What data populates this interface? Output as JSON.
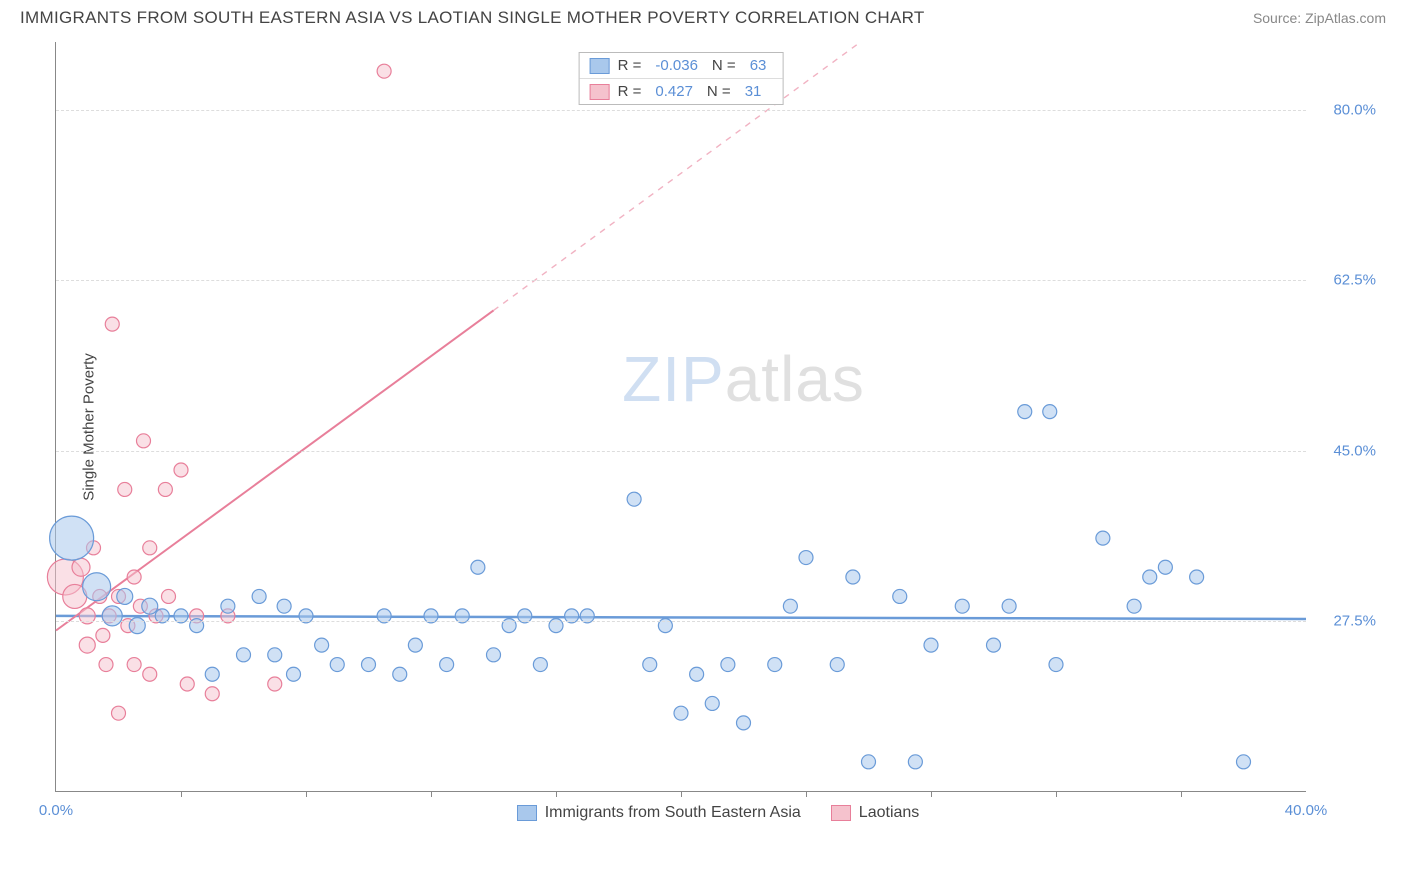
{
  "header": {
    "title": "IMMIGRANTS FROM SOUTH EASTERN ASIA VS LAOTIAN SINGLE MOTHER POVERTY CORRELATION CHART",
    "source": "Source: ZipAtlas.com"
  },
  "watermark": {
    "zip": "ZIP",
    "atlas": "atlas"
  },
  "chart": {
    "type": "scatter",
    "xlim": [
      0,
      40
    ],
    "ylim": [
      10,
      87
    ],
    "background_color": "#ffffff",
    "grid_color": "#dddddd",
    "axis_color": "#888888",
    "y_label": "Single Mother Poverty",
    "y_ticks": [
      27.5,
      45.0,
      62.5,
      80.0
    ],
    "y_tick_labels": [
      "27.5%",
      "45.0%",
      "62.5%",
      "80.0%"
    ],
    "x_ticks_major": [
      0,
      40
    ],
    "x_tick_labels": [
      "0.0%",
      "40.0%"
    ],
    "x_ticks_minor": [
      4,
      8,
      12,
      16,
      20,
      24,
      28,
      32,
      36
    ],
    "y_tick_label_color": "#5b8fd6",
    "x_tick_label_color": "#5b8fd6",
    "series": [
      {
        "name": "Immigrants from South Eastern Asia",
        "color_fill": "#a9c8ec",
        "color_stroke": "#6a9bd8",
        "fill_opacity": 0.55,
        "marker_stroke_width": 1.2,
        "regression": {
          "slope": -0.008,
          "intercept": 28.0,
          "dash_from_x": 40,
          "line_width": 2.5
        },
        "r": "-0.036",
        "n": "63",
        "points": [
          {
            "x": 0.5,
            "y": 36,
            "r": 22
          },
          {
            "x": 1.3,
            "y": 31,
            "r": 14
          },
          {
            "x": 1.8,
            "y": 28,
            "r": 10
          },
          {
            "x": 2.2,
            "y": 30,
            "r": 8
          },
          {
            "x": 2.6,
            "y": 27,
            "r": 8
          },
          {
            "x": 3.0,
            "y": 29,
            "r": 8
          },
          {
            "x": 3.4,
            "y": 28,
            "r": 7
          },
          {
            "x": 4.0,
            "y": 28,
            "r": 7
          },
          {
            "x": 4.5,
            "y": 27,
            "r": 7
          },
          {
            "x": 5.0,
            "y": 22,
            "r": 7
          },
          {
            "x": 5.5,
            "y": 29,
            "r": 7
          },
          {
            "x": 6.0,
            "y": 24,
            "r": 7
          },
          {
            "x": 6.5,
            "y": 30,
            "r": 7
          },
          {
            "x": 7.0,
            "y": 24,
            "r": 7
          },
          {
            "x": 7.3,
            "y": 29,
            "r": 7
          },
          {
            "x": 7.6,
            "y": 22,
            "r": 7
          },
          {
            "x": 8.0,
            "y": 28,
            "r": 7
          },
          {
            "x": 8.5,
            "y": 25,
            "r": 7
          },
          {
            "x": 9.0,
            "y": 23,
            "r": 7
          },
          {
            "x": 10.0,
            "y": 23,
            "r": 7
          },
          {
            "x": 10.5,
            "y": 28,
            "r": 7
          },
          {
            "x": 11.0,
            "y": 22,
            "r": 7
          },
          {
            "x": 11.5,
            "y": 25,
            "r": 7
          },
          {
            "x": 12.0,
            "y": 28,
            "r": 7
          },
          {
            "x": 12.5,
            "y": 23,
            "r": 7
          },
          {
            "x": 13.0,
            "y": 28,
            "r": 7
          },
          {
            "x": 13.5,
            "y": 33,
            "r": 7
          },
          {
            "x": 14.0,
            "y": 24,
            "r": 7
          },
          {
            "x": 14.5,
            "y": 27,
            "r": 7
          },
          {
            "x": 15.0,
            "y": 28,
            "r": 7
          },
          {
            "x": 15.5,
            "y": 23,
            "r": 7
          },
          {
            "x": 16.0,
            "y": 27,
            "r": 7
          },
          {
            "x": 16.5,
            "y": 28,
            "r": 7
          },
          {
            "x": 17.0,
            "y": 28,
            "r": 7
          },
          {
            "x": 18.5,
            "y": 40,
            "r": 7
          },
          {
            "x": 19.0,
            "y": 23,
            "r": 7
          },
          {
            "x": 19.5,
            "y": 27,
            "r": 7
          },
          {
            "x": 20.0,
            "y": 18,
            "r": 7
          },
          {
            "x": 20.5,
            "y": 22,
            "r": 7
          },
          {
            "x": 21.0,
            "y": 19,
            "r": 7
          },
          {
            "x": 21.5,
            "y": 23,
            "r": 7
          },
          {
            "x": 22.0,
            "y": 17,
            "r": 7
          },
          {
            "x": 23.0,
            "y": 23,
            "r": 7
          },
          {
            "x": 23.5,
            "y": 29,
            "r": 7
          },
          {
            "x": 24.0,
            "y": 34,
            "r": 7
          },
          {
            "x": 25.0,
            "y": 23,
            "r": 7
          },
          {
            "x": 25.5,
            "y": 32,
            "r": 7
          },
          {
            "x": 26.0,
            "y": 13,
            "r": 7
          },
          {
            "x": 27.0,
            "y": 30,
            "r": 7
          },
          {
            "x": 27.5,
            "y": 13,
            "r": 7
          },
          {
            "x": 28.0,
            "y": 25,
            "r": 7
          },
          {
            "x": 29.0,
            "y": 29,
            "r": 7
          },
          {
            "x": 30.0,
            "y": 25,
            "r": 7
          },
          {
            "x": 30.5,
            "y": 29,
            "r": 7
          },
          {
            "x": 31.0,
            "y": 49,
            "r": 7
          },
          {
            "x": 31.8,
            "y": 49,
            "r": 7
          },
          {
            "x": 32.0,
            "y": 23,
            "r": 7
          },
          {
            "x": 33.5,
            "y": 36,
            "r": 7
          },
          {
            "x": 34.5,
            "y": 29,
            "r": 7
          },
          {
            "x": 35.0,
            "y": 32,
            "r": 7
          },
          {
            "x": 35.5,
            "y": 33,
            "r": 7
          },
          {
            "x": 36.5,
            "y": 32,
            "r": 7
          },
          {
            "x": 38.0,
            "y": 13,
            "r": 7
          }
        ]
      },
      {
        "name": "Laotians",
        "color_fill": "#f5c2cd",
        "color_stroke": "#e87f9a",
        "fill_opacity": 0.5,
        "marker_stroke_width": 1.2,
        "regression": {
          "slope": 2.35,
          "intercept": 26.5,
          "dash_from_x": 14,
          "line_width": 2
        },
        "r": "0.427",
        "n": "31",
        "points": [
          {
            "x": 0.3,
            "y": 32,
            "r": 18
          },
          {
            "x": 0.6,
            "y": 30,
            "r": 12
          },
          {
            "x": 0.8,
            "y": 33,
            "r": 9
          },
          {
            "x": 1.0,
            "y": 28,
            "r": 8
          },
          {
            "x": 1.0,
            "y": 25,
            "r": 8
          },
          {
            "x": 1.2,
            "y": 35,
            "r": 7
          },
          {
            "x": 1.4,
            "y": 30,
            "r": 7
          },
          {
            "x": 1.5,
            "y": 26,
            "r": 7
          },
          {
            "x": 1.6,
            "y": 23,
            "r": 7
          },
          {
            "x": 1.7,
            "y": 28,
            "r": 7
          },
          {
            "x": 1.8,
            "y": 58,
            "r": 7
          },
          {
            "x": 2.0,
            "y": 30,
            "r": 7
          },
          {
            "x": 2.0,
            "y": 18,
            "r": 7
          },
          {
            "x": 2.2,
            "y": 41,
            "r": 7
          },
          {
            "x": 2.3,
            "y": 27,
            "r": 7
          },
          {
            "x": 2.5,
            "y": 32,
            "r": 7
          },
          {
            "x": 2.5,
            "y": 23,
            "r": 7
          },
          {
            "x": 2.7,
            "y": 29,
            "r": 7
          },
          {
            "x": 2.8,
            "y": 46,
            "r": 7
          },
          {
            "x": 3.0,
            "y": 35,
            "r": 7
          },
          {
            "x": 3.0,
            "y": 22,
            "r": 7
          },
          {
            "x": 3.2,
            "y": 28,
            "r": 7
          },
          {
            "x": 3.5,
            "y": 41,
            "r": 7
          },
          {
            "x": 3.6,
            "y": 30,
            "r": 7
          },
          {
            "x": 4.0,
            "y": 43,
            "r": 7
          },
          {
            "x": 4.2,
            "y": 21,
            "r": 7
          },
          {
            "x": 4.5,
            "y": 28,
            "r": 7
          },
          {
            "x": 5.0,
            "y": 20,
            "r": 7
          },
          {
            "x": 5.5,
            "y": 28,
            "r": 7
          },
          {
            "x": 7.0,
            "y": 21,
            "r": 7
          },
          {
            "x": 10.5,
            "y": 84,
            "r": 7
          }
        ]
      }
    ],
    "legend_bottom": [
      {
        "label": "Immigrants from South Eastern Asia",
        "fill": "#a9c8ec",
        "stroke": "#6a9bd8"
      },
      {
        "label": "Laotians",
        "fill": "#f5c2cd",
        "stroke": "#e87f9a"
      }
    ]
  }
}
